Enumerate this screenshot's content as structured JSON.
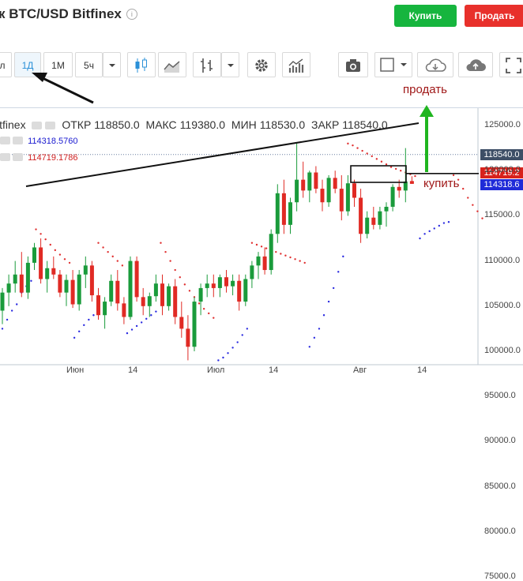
{
  "header": {
    "title": "к BTC/USD Bitfinex",
    "info_glyph": "i",
    "buy_label": "Купить",
    "sell_label": "Продать"
  },
  "toolbar": {
    "partial_item": "л",
    "interval_1d": "1Д",
    "interval_1m": "1М",
    "interval_5h": "5ч",
    "icons": [
      "chevron-down-icon",
      "candles-icon",
      "area-chart-icon",
      "bars-icon",
      "indicators-icon",
      "studies-icon",
      "camera-icon",
      "color-square-icon",
      "cloud-save-icon",
      "cloud-load-icon",
      "fullscreen-icon"
    ]
  },
  "legend": {
    "symbol": "itfinex",
    "open_label": "ОТКР",
    "open": "118850.0",
    "high_label": "МАКС",
    "high": "119380.0",
    "low_label": "МИН",
    "low": "118530.0",
    "close_label": "ЗАКР",
    "close": "118540.0",
    "psar_blue": "114318.5760",
    "psar_red": "114719.1786"
  },
  "annotations": {
    "sell": "продать",
    "buy": "купить"
  },
  "price_tags": {
    "last": "118540.0",
    "red": "114719.2",
    "blue": "114318.6"
  },
  "colors": {
    "up": "#1a9b3b",
    "down": "#e02a24",
    "psar_blue": "#2a2ae0",
    "psar_red": "#e03030",
    "arrow_green": "#1fb51f"
  },
  "chart_data": {
    "type": "candlestick",
    "y_ticks": [
      "125000.0",
      "120000.0",
      "115000.0",
      "110000.0",
      "105000.0",
      "100000.0",
      "95000.0",
      "90000.0",
      "85000.0",
      "80000.0",
      "75000.0"
    ],
    "x_ticks": [
      "Июн",
      "14",
      "Июл",
      "14",
      "Авг",
      "14"
    ],
    "ylim": [
      72500,
      127500
    ],
    "ohlc": [
      [
        104500,
        107000,
        103000,
        106500
      ],
      [
        106500,
        108500,
        105000,
        107500
      ],
      [
        107500,
        110000,
        106500,
        108500
      ],
      [
        108500,
        111000,
        106000,
        106500
      ],
      [
        106500,
        110500,
        105800,
        109800
      ],
      [
        109800,
        112000,
        109000,
        111500
      ],
      [
        111500,
        112500,
        107500,
        108000
      ],
      [
        108000,
        110000,
        106500,
        109200
      ],
      [
        109200,
        110500,
        108000,
        108500
      ],
      [
        108500,
        109000,
        106000,
        106500
      ],
      [
        106500,
        108500,
        105000,
        107900
      ],
      [
        107900,
        109000,
        104800,
        105200
      ],
      [
        105200,
        109000,
        104500,
        108500
      ],
      [
        108500,
        110500,
        107000,
        109500
      ],
      [
        109500,
        110000,
        105500,
        106200
      ],
      [
        106200,
        107000,
        103500,
        104000
      ],
      [
        104000,
        106000,
        102500,
        105500
      ],
      [
        105500,
        108500,
        105000,
        107800
      ],
      [
        107800,
        109000,
        104500,
        105300
      ],
      [
        105300,
        106000,
        103000,
        103800
      ],
      [
        103800,
        110500,
        103500,
        110000
      ],
      [
        110000,
        110500,
        105500,
        106000
      ],
      [
        106000,
        107000,
        104000,
        105000
      ],
      [
        105000,
        106500,
        103800,
        106100
      ],
      [
        106100,
        108500,
        105500,
        107500
      ],
      [
        107500,
        108500,
        104000,
        105000
      ],
      [
        105000,
        107500,
        104500,
        107200
      ],
      [
        107200,
        108000,
        103000,
        103800
      ],
      [
        103800,
        105500,
        101500,
        102500
      ],
      [
        102500,
        104000,
        99000,
        100500
      ],
      [
        100500,
        106000,
        100000,
        105500
      ],
      [
        105500,
        107500,
        104000,
        107000
      ],
      [
        107000,
        108500,
        106000,
        107500
      ],
      [
        107500,
        108500,
        106000,
        107000
      ],
      [
        107000,
        108500,
        106000,
        108200
      ],
      [
        108200,
        109000,
        106500,
        107200
      ],
      [
        107200,
        108500,
        106200,
        107800
      ],
      [
        107800,
        108500,
        104500,
        105500
      ],
      [
        105500,
        108500,
        105000,
        108000
      ],
      [
        108000,
        110000,
        107000,
        109500
      ],
      [
        109500,
        111000,
        108000,
        110500
      ],
      [
        110500,
        111500,
        108500,
        109000
      ],
      [
        109000,
        113500,
        108500,
        113000
      ],
      [
        113000,
        118500,
        112000,
        117500
      ],
      [
        117500,
        119000,
        113000,
        114000
      ],
      [
        114000,
        117000,
        113000,
        116500
      ],
      [
        116500,
        123000,
        115500,
        119000
      ],
      [
        119000,
        121000,
        117000,
        117800
      ],
      [
        117800,
        120000,
        116500,
        119800
      ],
      [
        119800,
        120500,
        117500,
        118000
      ],
      [
        118000,
        119000,
        115500,
        116500
      ],
      [
        116500,
        119500,
        116000,
        119200
      ],
      [
        119200,
        120000,
        117500,
        118000
      ],
      [
        118000,
        119500,
        114500,
        115500
      ],
      [
        115500,
        119500,
        115000,
        118600
      ],
      [
        118600,
        119000,
        116000,
        117000
      ],
      [
        117000,
        118000,
        112000,
        113000
      ],
      [
        113000,
        115500,
        112500,
        114800
      ],
      [
        114800,
        116000,
        113500,
        114000
      ],
      [
        114000,
        116000,
        113500,
        115500
      ],
      [
        115500,
        116500,
        113800,
        116000
      ],
      [
        116000,
        118500,
        115500,
        118200
      ],
      [
        118200,
        119000,
        117000,
        117800
      ],
      [
        117800,
        122500,
        116500,
        118800
      ],
      [
        118850,
        119380,
        118530,
        118540
      ]
    ],
    "psar": [
      {
        "c": "b",
        "v": [
          102500,
          103500,
          104500,
          105200,
          106500,
          107200,
          107800
        ]
      },
      {
        "c": "r",
        "v": [
          113500,
          113000,
          112400,
          111800,
          111200,
          110700,
          110200,
          109800
        ]
      },
      {
        "c": "b",
        "v": [
          101500,
          102200,
          102900,
          103500,
          104000
        ]
      },
      {
        "c": "r",
        "v": [
          112000,
          111500,
          111000,
          110500,
          110000,
          109500
        ]
      },
      {
        "c": "b",
        "v": [
          102000,
          102400,
          102800,
          103200,
          103600,
          104000,
          104400
        ]
      },
      {
        "c": "r",
        "v": [
          112000,
          111000,
          110000,
          109000,
          108200,
          107400,
          106700,
          106000,
          105300,
          104700,
          104200,
          103700
        ]
      },
      {
        "c": "b",
        "v": [
          99000,
          99300,
          99800,
          100400,
          101000,
          101800,
          102500
        ]
      },
      {
        "c": "r",
        "v": [
          112000,
          111800,
          111600,
          111400,
          111200,
          111000,
          110800,
          110600,
          110400,
          110200,
          110000,
          109800
        ]
      },
      {
        "c": "b",
        "v": [
          100500,
          101500,
          102500,
          104000,
          105500,
          107000,
          108800,
          110500
        ]
      },
      {
        "c": "r",
        "v": [
          123000,
          122800,
          122500,
          122200,
          121900,
          121600,
          121300,
          121000,
          120700,
          120400,
          120200,
          120000,
          119800,
          119600,
          119400
        ]
      },
      {
        "c": "b",
        "v": [
          112500,
          113000,
          113300,
          113600,
          113900,
          114200,
          114318
        ]
      },
      {
        "c": "r",
        "v": [
          119500,
          119000,
          118000,
          117000,
          116200,
          115500,
          114719
        ]
      }
    ]
  }
}
